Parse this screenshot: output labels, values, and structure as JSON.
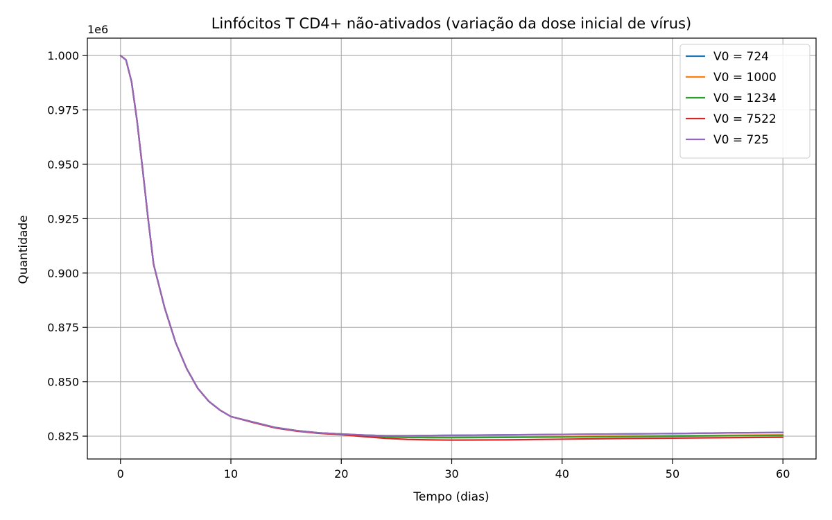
{
  "chart_data": {
    "type": "line",
    "title": "Linfócitos T CD4+ não-ativados (variação da dose inicial de vírus)",
    "xlabel": "Tempo (dias)",
    "ylabel": "Quantidade",
    "y_offset_label": "1e6",
    "xlim": [
      -3,
      63
    ],
    "ylim": [
      0.8145,
      1.008
    ],
    "xticks": [
      0,
      10,
      20,
      30,
      40,
      50,
      60
    ],
    "yticks": [
      0.825,
      0.85,
      0.875,
      0.9,
      0.925,
      0.95,
      0.975,
      1.0
    ],
    "ytick_labels": [
      "0.825",
      "0.850",
      "0.875",
      "0.900",
      "0.925",
      "0.950",
      "0.975",
      "1.000"
    ],
    "grid": true,
    "legend_position": "top-right",
    "x": [
      0,
      0.5,
      1,
      1.5,
      2,
      2.5,
      3,
      4,
      5,
      6,
      7,
      8,
      9,
      10,
      12,
      14,
      16,
      18,
      20,
      22,
      24,
      26,
      28,
      30,
      35,
      40,
      45,
      50,
      55,
      60
    ],
    "series": [
      {
        "name": "V0 = 724",
        "color": "#1f77b4",
        "values": [
          1.0,
          0.998,
          0.988,
          0.97,
          0.948,
          0.925,
          0.904,
          0.884,
          0.868,
          0.856,
          0.847,
          0.841,
          0.837,
          0.834,
          0.8315,
          0.829,
          0.8275,
          0.8265,
          0.826,
          0.8255,
          0.8252,
          0.8252,
          0.8253,
          0.8254,
          0.8256,
          0.8258,
          0.826,
          0.8262,
          0.8265,
          0.8267
        ]
      },
      {
        "name": "V0 = 1000",
        "color": "#ff7f0e",
        "values": [
          1.0,
          0.998,
          0.988,
          0.97,
          0.948,
          0.925,
          0.904,
          0.884,
          0.868,
          0.856,
          0.847,
          0.841,
          0.837,
          0.834,
          0.8315,
          0.829,
          0.8275,
          0.8265,
          0.826,
          0.8253,
          0.8248,
          0.8246,
          0.8245,
          0.8245,
          0.8246,
          0.8248,
          0.825,
          0.8252,
          0.8254,
          0.8256
        ]
      },
      {
        "name": "V0 = 1234",
        "color": "#2ca02c",
        "values": [
          1.0,
          0.998,
          0.988,
          0.97,
          0.948,
          0.925,
          0.904,
          0.884,
          0.868,
          0.856,
          0.847,
          0.841,
          0.837,
          0.834,
          0.8315,
          0.829,
          0.8275,
          0.8265,
          0.826,
          0.8253,
          0.8247,
          0.8244,
          0.8243,
          0.8243,
          0.8244,
          0.8246,
          0.8248,
          0.825,
          0.8252,
          0.8254
        ]
      },
      {
        "name": "V0 = 7522",
        "color": "#d62728",
        "values": [
          1.0,
          0.998,
          0.988,
          0.97,
          0.948,
          0.925,
          0.904,
          0.884,
          0.868,
          0.856,
          0.847,
          0.841,
          0.837,
          0.834,
          0.8313,
          0.8288,
          0.8273,
          0.8263,
          0.8257,
          0.8248,
          0.824,
          0.8235,
          0.8233,
          0.8232,
          0.8233,
          0.8236,
          0.8239,
          0.8241,
          0.8243,
          0.8245
        ]
      },
      {
        "name": "V0 = 725",
        "color": "#9467bd",
        "values": [
          1.0,
          0.998,
          0.988,
          0.97,
          0.948,
          0.925,
          0.904,
          0.884,
          0.868,
          0.856,
          0.847,
          0.841,
          0.837,
          0.834,
          0.8315,
          0.829,
          0.8275,
          0.8265,
          0.826,
          0.8255,
          0.8252,
          0.8252,
          0.8253,
          0.8254,
          0.8256,
          0.8258,
          0.826,
          0.8262,
          0.8265,
          0.8267
        ]
      }
    ]
  }
}
